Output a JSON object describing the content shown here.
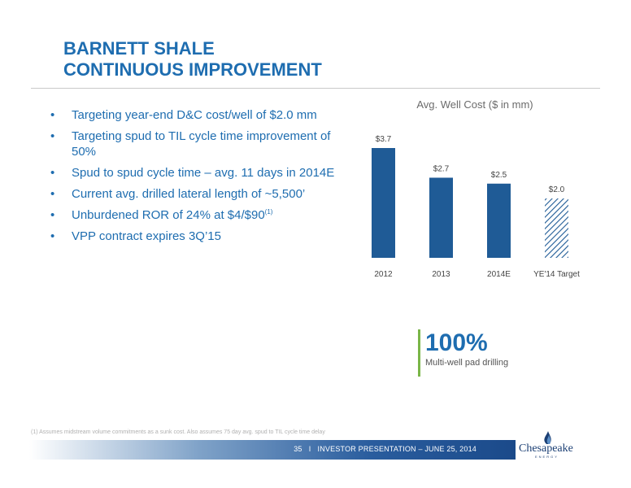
{
  "slide": {
    "title_line1": "BARNETT SHALE",
    "title_line2": "CONTINUOUS IMPROVEMENT"
  },
  "bullets": [
    "Targeting year-end D&C cost/well of $2.0 mm",
    "Targeting spud to TIL cycle time improvement of 50%",
    "Spud to spud cycle time – avg. 11 days in 2014E",
    "Current avg. drilled lateral length of ~5,500’",
    "Unburdened ROR of 24% at $4/$90",
    "VPP contract expires 3Q’15"
  ],
  "bullet_footnote_marker": "(1)",
  "chart_data": {
    "type": "bar",
    "title": "Avg. Well Cost ($ in mm)",
    "categories": [
      "2012",
      "2013",
      "2014E",
      "YE'14 Target"
    ],
    "values": [
      3.7,
      2.7,
      2.5,
      2.0
    ],
    "value_labels": [
      "$3.7",
      "$2.7",
      "$2.5",
      "$2.0"
    ],
    "patterned": [
      false,
      false,
      false,
      true
    ],
    "color": "#1f5b96",
    "ylim": [
      0,
      3.7
    ],
    "grid": false
  },
  "stat": {
    "value": "100%",
    "label": "Multi-well pad drilling"
  },
  "footnote": "(1)   Assumes midstream volume commitments as a sunk cost. Also assumes 75 day avg. spud to TIL cycle time delay",
  "footer": {
    "page": "35",
    "separator": "I",
    "text": "INVESTOR PRESENTATION – JUNE 25, 2014"
  },
  "logo": {
    "name": "Chesapeake",
    "subtitle": "ENERGY"
  },
  "colors": {
    "title": "#1e6db0",
    "bar": "#1f5b96",
    "stat_rule": "#7ab648"
  }
}
